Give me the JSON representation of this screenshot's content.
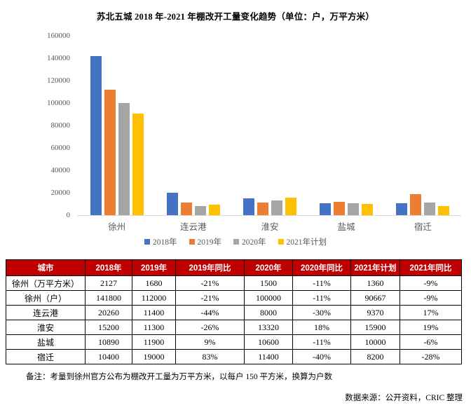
{
  "chart_data": {
    "type": "bar",
    "title": "苏北五城 2018 年-2021 年棚改开工量变化趋势（单位：户，万平方米）",
    "categories": [
      "徐州",
      "连云港",
      "淮安",
      "盐城",
      "宿迁"
    ],
    "series": [
      {
        "name": "2018年",
        "color": "#4472C4",
        "values": [
          141800,
          20260,
          15200,
          10890,
          10400
        ]
      },
      {
        "name": "2019年",
        "color": "#ED7D31",
        "values": [
          112000,
          11400,
          11300,
          11900,
          19000
        ]
      },
      {
        "name": "2020年",
        "color": "#A5A5A5",
        "values": [
          100000,
          8000,
          13320,
          10600,
          11400
        ]
      },
      {
        "name": "2021年计划",
        "color": "#FFC000",
        "values": [
          90667,
          9370,
          15900,
          10000,
          8200
        ]
      }
    ],
    "xlabel": "",
    "ylabel": "",
    "ylim": [
      0,
      160000
    ],
    "ytick_step": 20000,
    "grid": false,
    "legend_position": "bottom"
  },
  "table": {
    "columns": [
      "城市",
      "2018年",
      "2019年",
      "2019年同比",
      "2020年",
      "2020年同比",
      "2021年计划",
      "2021年同比"
    ],
    "rows": [
      [
        "徐州（万平方米）",
        "2127",
        "1680",
        "-21%",
        "1500",
        "-11%",
        "1360",
        "-9%"
      ],
      [
        "徐州（户）",
        "141800",
        "112000",
        "-21%",
        "100000",
        "-11%",
        "90667",
        "-9%"
      ],
      [
        "连云港",
        "20260",
        "11400",
        "-44%",
        "8000",
        "-30%",
        "9370",
        "17%"
      ],
      [
        "淮安",
        "15200",
        "11300",
        "-26%",
        "13320",
        "18%",
        "15900",
        "19%"
      ],
      [
        "盐城",
        "10890",
        "11900",
        "9%",
        "10600",
        "-11%",
        "10000",
        "-6%"
      ],
      [
        "宿迁",
        "10400",
        "19000",
        "83%",
        "11400",
        "-40%",
        "8200",
        "-28%"
      ]
    ],
    "header_bg": "#C00000",
    "header_text_color": "#FFFFFF"
  },
  "note": "备注：考量到徐州官方公布为棚改开工量为万平方米，以每户 150 平方米，换算为户数",
  "source": "数据来源：公开资料，CRIC 整理",
  "colors": {
    "series_2018": "#4472C4",
    "series_2019": "#ED7D31",
    "series_2020": "#A5A5A5",
    "series_2021_plan": "#FFC000",
    "table_header": "#C00000",
    "axis_text": "#595959",
    "axis_line": "#D9D9D9"
  }
}
